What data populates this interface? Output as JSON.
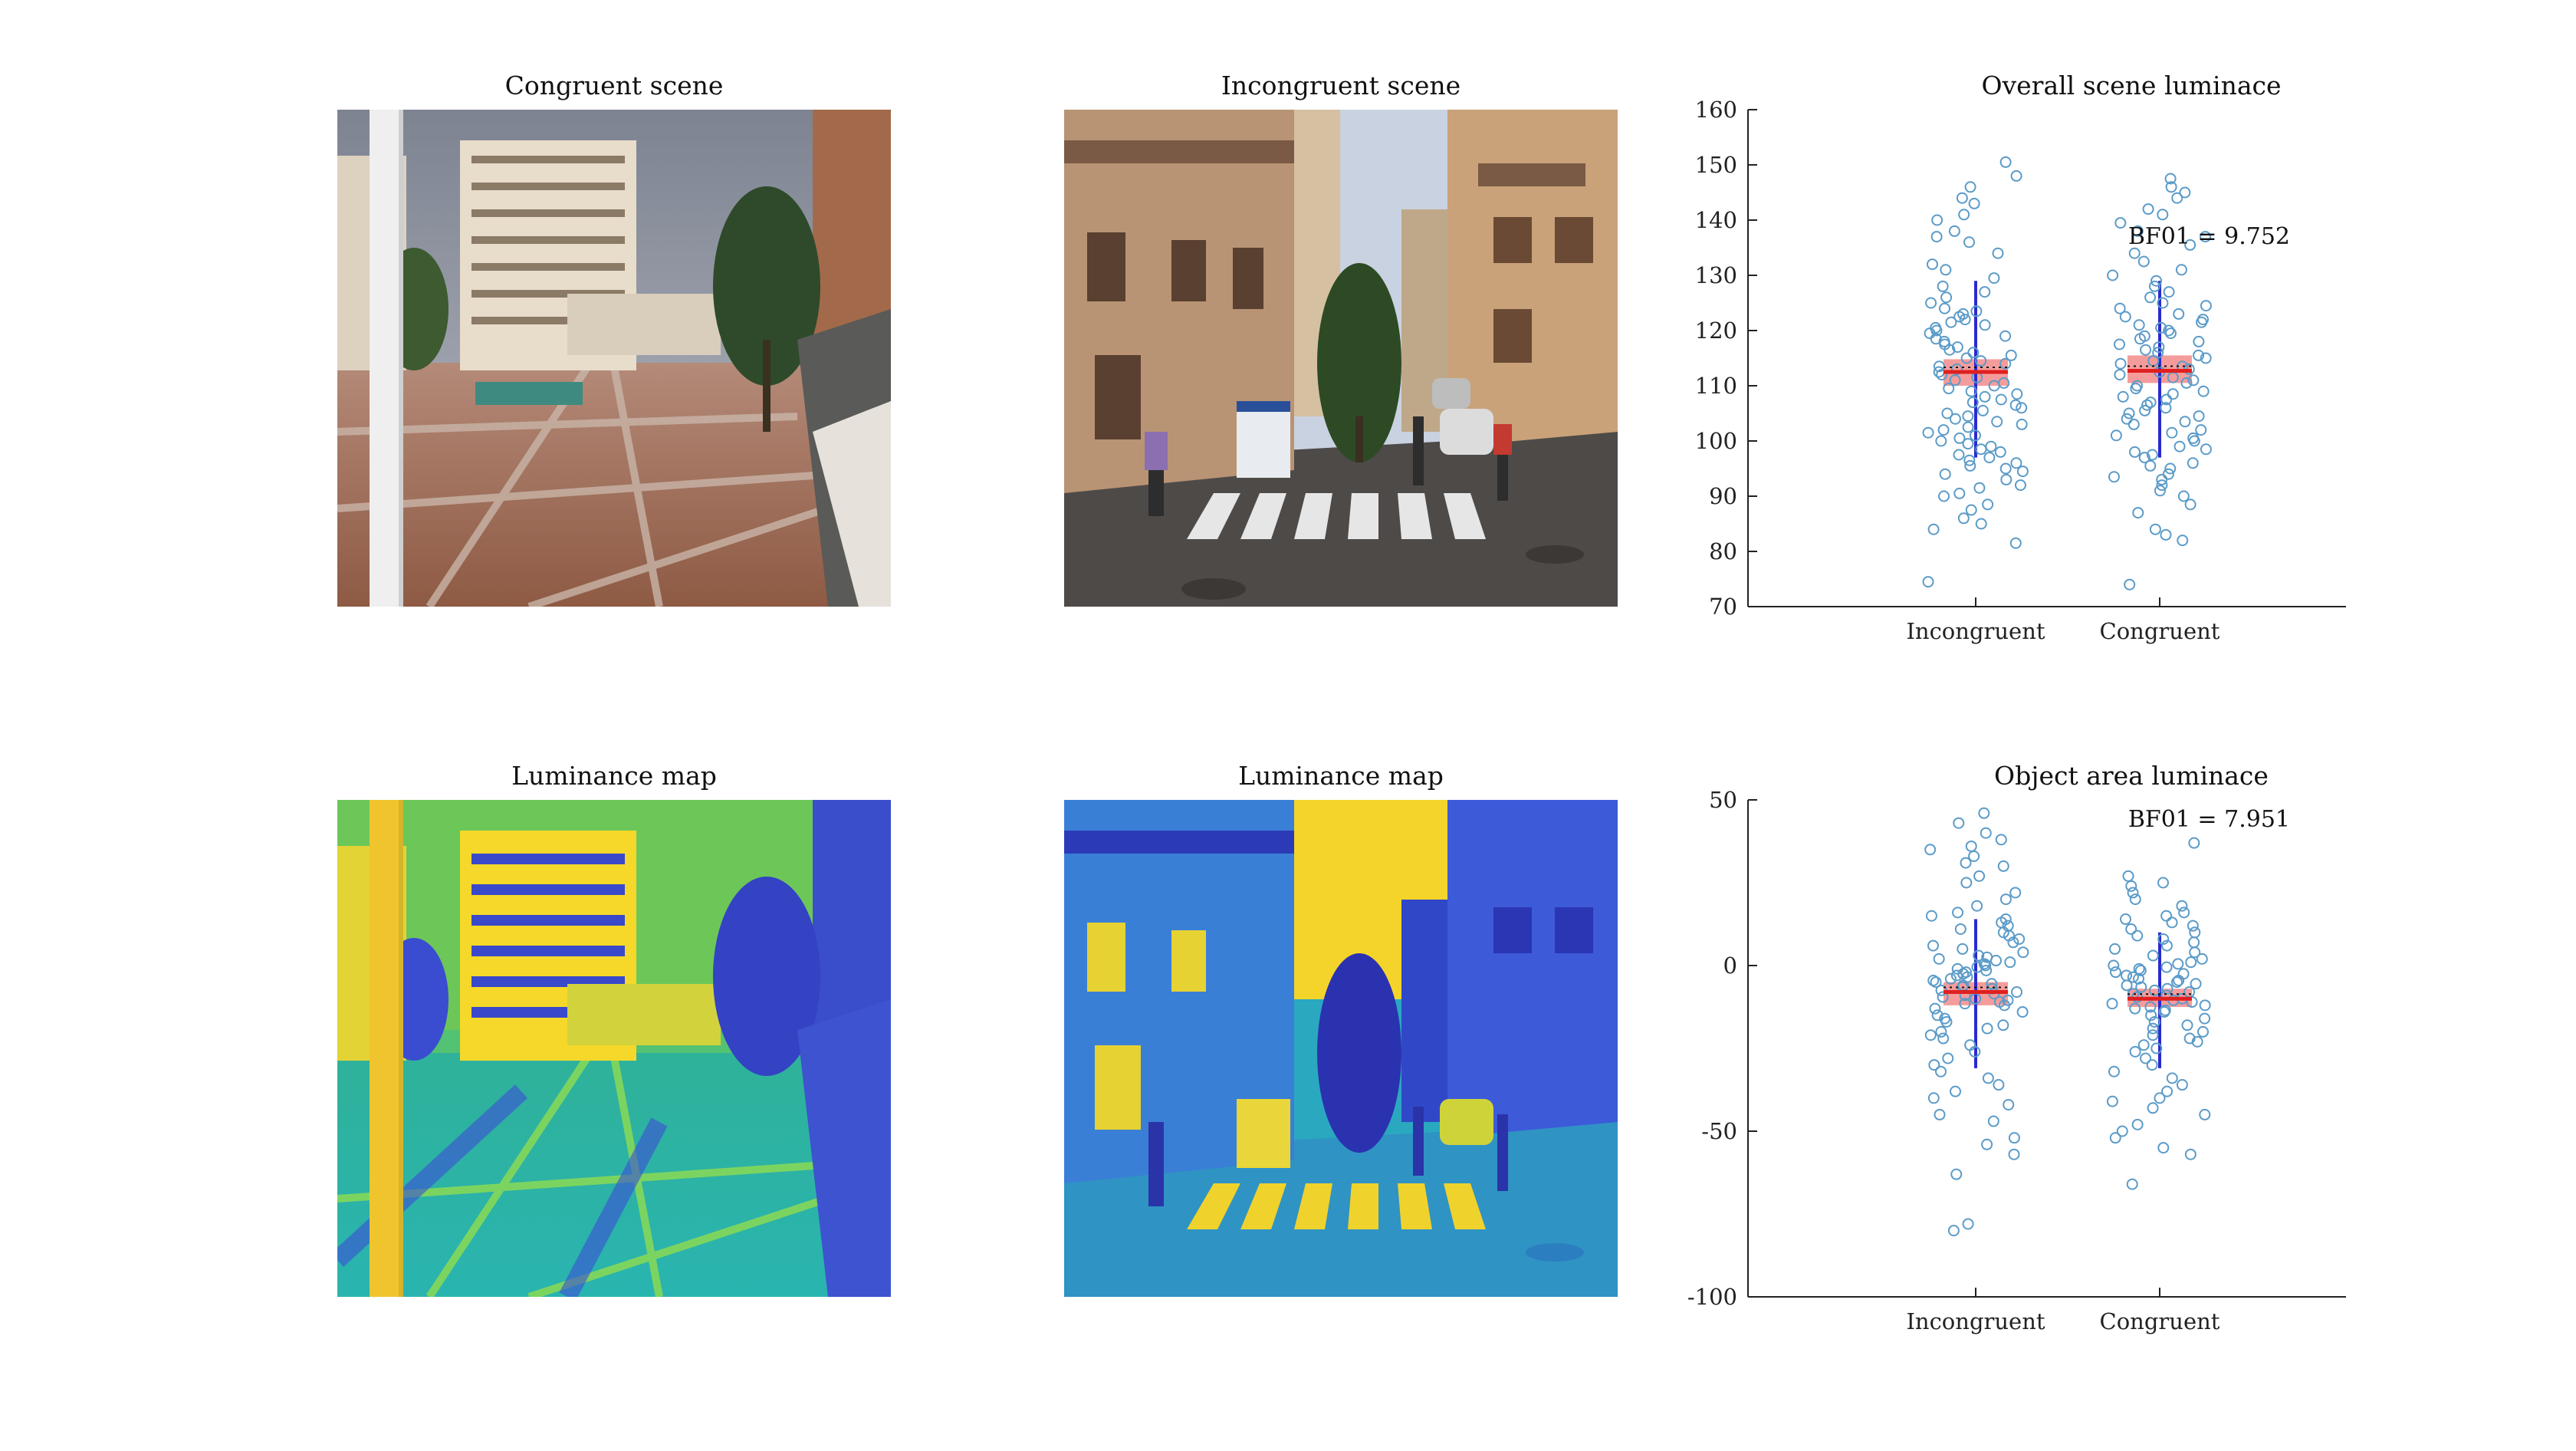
{
  "panels": {
    "congruent_title": "Congruent scene",
    "incongruent_title": "Incongruent scene",
    "lum_map_left_title": "Luminance map",
    "lum_map_right_title": "Luminance map",
    "overall_title": "Overall scene luminace",
    "object_title": "Object area luminace"
  },
  "images": {
    "congruent_scene": "photo of a plaza with white apartment towers, a lamp pole, trees and a brick-paved square",
    "incongruent_scene": "photo of a narrow street with old buildings, a crosswalk, parked cars and pedestrians",
    "lum_map_congruent": "luminance map (blue-green-yellow colormap) of the congruent scene",
    "lum_map_incongruent": "luminance map (blue-green-yellow colormap) of the incongruent scene"
  },
  "colors": {
    "point": "#5b9bc8",
    "box": "#f28b8b",
    "mean_line": "#e02020",
    "whisker": "#2a2ad0",
    "axis": "#222222"
  },
  "chart_data": [
    {
      "type": "scatter",
      "title": "Overall scene luminace",
      "categories": [
        "Incongruent",
        "Congruent"
      ],
      "ylim": [
        70,
        160
      ],
      "yticks": [
        70,
        80,
        90,
        100,
        110,
        120,
        130,
        140,
        150,
        160
      ],
      "annotation": "BF01 = 9.752",
      "series": [
        {
          "category": "Incongruent",
          "summary": {
            "mean": 112.5,
            "box_low": 110,
            "box_high": 114.8,
            "whisker_low": 97,
            "whisker_high": 129
          },
          "values": [
            74.5,
            81.5,
            84,
            85,
            86,
            87.5,
            88.5,
            90,
            90.5,
            91.5,
            92,
            93,
            94,
            94.5,
            95,
            95.5,
            96,
            96.5,
            97,
            97.5,
            98,
            98.5,
            99,
            99.5,
            100,
            100.5,
            101,
            101.5,
            102,
            102.5,
            103,
            103.5,
            104,
            104.5,
            105,
            105.5,
            106,
            106.5,
            107,
            107.5,
            108,
            108.5,
            109,
            109.5,
            110,
            110.5,
            111,
            111.5,
            112,
            112.5,
            113,
            113.5,
            114,
            114.5,
            115,
            115.5,
            116,
            116.5,
            117,
            117.5,
            118,
            118.5,
            119,
            119.5,
            120,
            120.5,
            121,
            121.5,
            122,
            122.5,
            123,
            123.5,
            124,
            125,
            126,
            127,
            128,
            129.5,
            131,
            132,
            134,
            136,
            137,
            138,
            140,
            141,
            143,
            144,
            146,
            148,
            150.5
          ]
        },
        {
          "category": "Congruent",
          "summary": {
            "mean": 112.7,
            "box_low": 110.5,
            "box_high": 115.5,
            "whisker_low": 97,
            "whisker_high": 129
          },
          "values": [
            74,
            82,
            83,
            84,
            87,
            88.5,
            90,
            91,
            92,
            93,
            93.5,
            94,
            95,
            95.5,
            96,
            97,
            97.5,
            98,
            98.5,
            99,
            100,
            100.5,
            101,
            101.5,
            102,
            103,
            103.5,
            104,
            104.5,
            105,
            105.5,
            106,
            106.5,
            107,
            107.5,
            108,
            108.5,
            109,
            109.5,
            110,
            110.5,
            111,
            111.5,
            112,
            112.5,
            113,
            113.5,
            114,
            114.5,
            115,
            115.5,
            116,
            116.5,
            117,
            117.5,
            118,
            118.5,
            119,
            119.5,
            120,
            120.5,
            121,
            121.5,
            122,
            122.5,
            123,
            124,
            124.5,
            125,
            126,
            127,
            128,
            129,
            130,
            131,
            132.5,
            134,
            135.5,
            137,
            138,
            139.5,
            141,
            142,
            144,
            145,
            146,
            147.5
          ]
        }
      ]
    },
    {
      "type": "scatter",
      "title": "Object area luminace",
      "categories": [
        "Incongruent",
        "Congruent"
      ],
      "ylim": [
        -100,
        50
      ],
      "yticks": [
        -100,
        -50,
        0,
        50
      ],
      "annotation": "BF01 = 7.951",
      "series": [
        {
          "category": "Incongruent",
          "summary": {
            "mean": -8,
            "box_low": -12,
            "box_high": -5,
            "whisker_low": -31,
            "whisker_high": 14
          },
          "values": [
            -80,
            -78,
            -63,
            -57,
            -54,
            -52,
            -47,
            -45,
            -42,
            -40,
            -38,
            -36,
            -34,
            -32,
            -30,
            -28,
            -26,
            -24,
            -22,
            -21,
            -20,
            -19,
            -18,
            -17,
            -16,
            -15,
            -14,
            -13,
            -12,
            -11.5,
            -11,
            -10.5,
            -10,
            -9.5,
            -9,
            -8.5,
            -8,
            -7.5,
            -7,
            -6.5,
            -6,
            -5.5,
            -5,
            -4.5,
            -4,
            -3.5,
            -3,
            -2.5,
            -2,
            -1.5,
            -1,
            -0.5,
            0,
            0.5,
            1,
            1.5,
            2,
            2.5,
            3,
            4,
            5,
            6,
            7,
            8,
            9,
            10,
            11,
            12,
            13,
            14,
            15,
            16,
            18,
            20,
            22,
            25,
            27,
            30,
            31,
            33,
            35,
            36,
            38,
            40,
            43,
            46
          ]
        },
        {
          "category": "Congruent",
          "summary": {
            "mean": -10,
            "box_low": -12.5,
            "box_high": -7,
            "whisker_low": -31,
            "whisker_high": 10
          },
          "values": [
            -66,
            -57,
            -55,
            -52,
            -50,
            -48,
            -45,
            -43,
            -41,
            -40,
            -38,
            -36,
            -34,
            -32,
            -30,
            -28,
            -26,
            -25,
            -24,
            -23,
            -22,
            -21,
            -20,
            -19,
            -18,
            -17,
            -16,
            -15,
            -14,
            -13.5,
            -13,
            -12.5,
            -12,
            -11.5,
            -11,
            -10.5,
            -10,
            -9.5,
            -9,
            -8.5,
            -8,
            -7.5,
            -7,
            -6.5,
            -6,
            -5.5,
            -5,
            -4.5,
            -4,
            -3.5,
            -3,
            -2.5,
            -2,
            -1.5,
            -1,
            -0.5,
            0,
            0.5,
            1,
            2,
            3,
            4,
            5,
            6,
            7,
            8,
            9,
            10,
            11,
            12,
            13,
            14,
            15,
            16,
            18,
            20,
            22,
            24,
            25,
            27,
            37
          ]
        }
      ]
    }
  ]
}
